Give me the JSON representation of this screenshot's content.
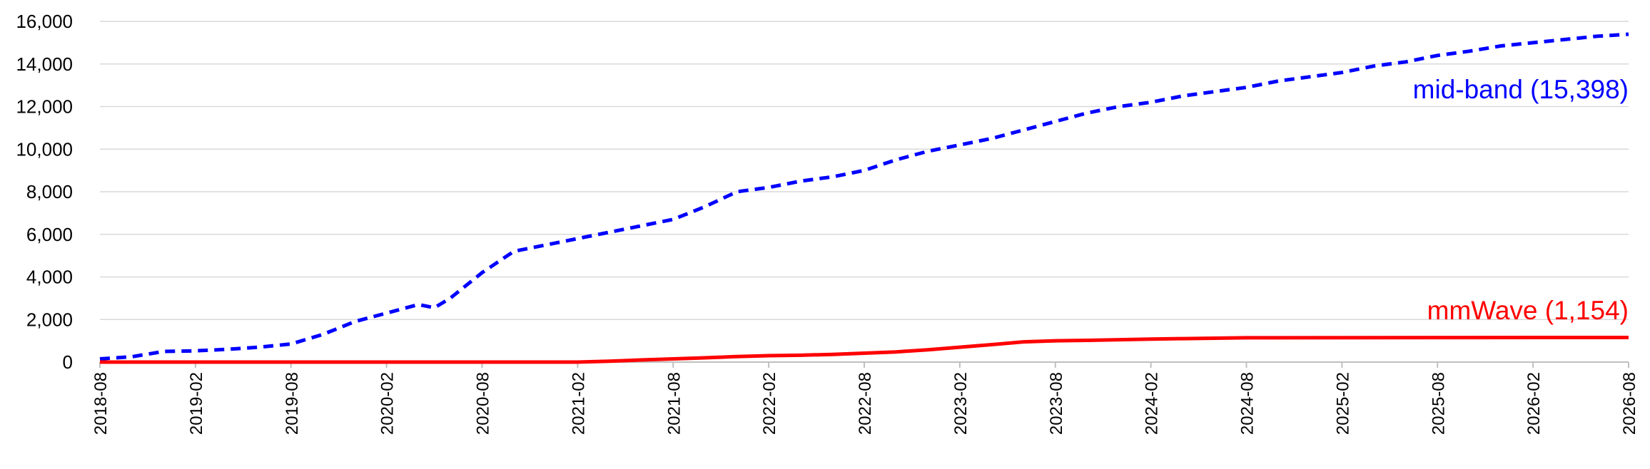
{
  "chart_data": {
    "type": "line",
    "x_ticks": [
      "2018-08",
      "2019-02",
      "2019-08",
      "2020-02",
      "2020-08",
      "2021-02",
      "2021-08",
      "2022-02",
      "2022-08",
      "2023-02",
      "2023-08",
      "2024-02",
      "2024-08",
      "2025-02",
      "2025-08",
      "2026-02",
      "2026-08"
    ],
    "y_ticks": [
      "0",
      "2,000",
      "4,000",
      "6,000",
      "8,000",
      "10,000",
      "12,000",
      "14,000",
      "16,000"
    ],
    "ylim": [
      0,
      16000
    ],
    "x_range": [
      "2018-08",
      "2026-08"
    ],
    "grid": "horizontal",
    "series": [
      {
        "name": "mid-band",
        "label": "mid-band (15,398)",
        "color": "#0000ff",
        "dash": "dashed",
        "points": [
          [
            "2018-08",
            150
          ],
          [
            "2018-10",
            250
          ],
          [
            "2018-12",
            500
          ],
          [
            "2019-02",
            530
          ],
          [
            "2019-04",
            600
          ],
          [
            "2019-06",
            700
          ],
          [
            "2019-08",
            850
          ],
          [
            "2019-10",
            1300
          ],
          [
            "2019-12",
            1900
          ],
          [
            "2020-02",
            2300
          ],
          [
            "2020-04",
            2700
          ],
          [
            "2020-05",
            2550
          ],
          [
            "2020-06",
            3000
          ],
          [
            "2020-08",
            4200
          ],
          [
            "2020-10",
            5200
          ],
          [
            "2020-12",
            5500
          ],
          [
            "2021-02",
            5800
          ],
          [
            "2021-04",
            6100
          ],
          [
            "2021-06",
            6400
          ],
          [
            "2021-08",
            6700
          ],
          [
            "2021-10",
            7300
          ],
          [
            "2021-12",
            8000
          ],
          [
            "2022-02",
            8200
          ],
          [
            "2022-04",
            8500
          ],
          [
            "2022-06",
            8700
          ],
          [
            "2022-08",
            9000
          ],
          [
            "2022-10",
            9500
          ],
          [
            "2022-12",
            9900
          ],
          [
            "2023-02",
            10200
          ],
          [
            "2023-04",
            10500
          ],
          [
            "2023-06",
            10900
          ],
          [
            "2023-08",
            11300
          ],
          [
            "2023-10",
            11700
          ],
          [
            "2023-12",
            12000
          ],
          [
            "2024-02",
            12200
          ],
          [
            "2024-04",
            12500
          ],
          [
            "2024-06",
            12700
          ],
          [
            "2024-08",
            12900
          ],
          [
            "2024-10",
            13200
          ],
          [
            "2024-12",
            13400
          ],
          [
            "2025-02",
            13600
          ],
          [
            "2025-04",
            13900
          ],
          [
            "2025-06",
            14100
          ],
          [
            "2025-08",
            14400
          ],
          [
            "2025-10",
            14600
          ],
          [
            "2025-12",
            14850
          ],
          [
            "2026-02",
            15000
          ],
          [
            "2026-04",
            15150
          ],
          [
            "2026-06",
            15300
          ],
          [
            "2026-08",
            15398
          ]
        ]
      },
      {
        "name": "mmWave",
        "label": "mmWave (1,154)",
        "color": "#ff0000",
        "dash": "solid",
        "points": [
          [
            "2018-08",
            0
          ],
          [
            "2019-08",
            0
          ],
          [
            "2020-08",
            0
          ],
          [
            "2021-02",
            0
          ],
          [
            "2021-04",
            40
          ],
          [
            "2021-06",
            100
          ],
          [
            "2021-08",
            150
          ],
          [
            "2021-10",
            200
          ],
          [
            "2021-12",
            260
          ],
          [
            "2022-02",
            300
          ],
          [
            "2022-04",
            320
          ],
          [
            "2022-06",
            360
          ],
          [
            "2022-08",
            420
          ],
          [
            "2022-10",
            480
          ],
          [
            "2022-12",
            580
          ],
          [
            "2023-02",
            700
          ],
          [
            "2023-04",
            820
          ],
          [
            "2023-06",
            950
          ],
          [
            "2023-08",
            1000
          ],
          [
            "2023-10",
            1020
          ],
          [
            "2023-12",
            1050
          ],
          [
            "2024-02",
            1080
          ],
          [
            "2024-04",
            1100
          ],
          [
            "2024-06",
            1120
          ],
          [
            "2024-08",
            1140
          ],
          [
            "2025-08",
            1150
          ],
          [
            "2026-08",
            1154
          ]
        ]
      }
    ]
  }
}
